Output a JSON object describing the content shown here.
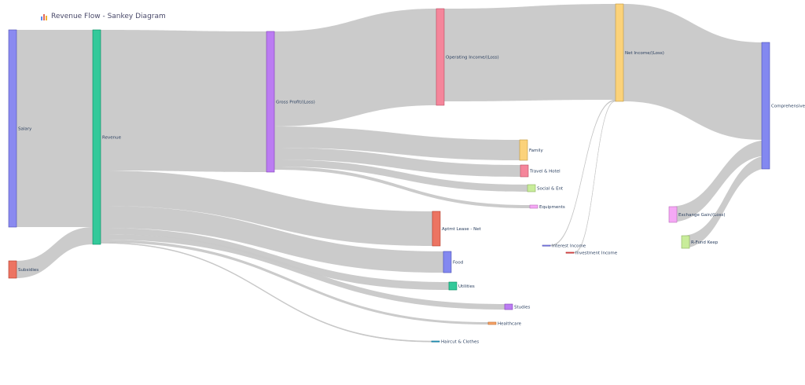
{
  "title": "Revenue Flow - Sankey Diagram",
  "title_icon": "bar-chart-icon",
  "nodes": [
    {
      "id": "salary",
      "label": "Salary",
      "color": "#8a8af0"
    },
    {
      "id": "subsidies",
      "label": "Subsidies",
      "color": "#ec7462"
    },
    {
      "id": "revenue",
      "label": "Revenue",
      "color": "#33c99a"
    },
    {
      "id": "gross",
      "label": "Gross Profit/(Loss)",
      "color": "#bb7cf2"
    },
    {
      "id": "operating",
      "label": "Operating Income/(Loss)",
      "color": "#f5869b"
    },
    {
      "id": "net",
      "label": "Net Income/(Loss)",
      "color": "#fbd27a"
    },
    {
      "id": "comprehensive",
      "label": "Comprehensive Income/(Loss)",
      "color": "#8388f0"
    },
    {
      "id": "family",
      "label": "Family",
      "color": "#fbd27a"
    },
    {
      "id": "travel",
      "label": "Travel & Hotel",
      "color": "#f5869b"
    },
    {
      "id": "social",
      "label": "Social & Ent",
      "color": "#c8ec9a"
    },
    {
      "id": "equipments",
      "label": "Equipments",
      "color": "#f5a8f5"
    },
    {
      "id": "aptmt",
      "label": "Aptmt Lease - Net",
      "color": "#ec7462"
    },
    {
      "id": "food",
      "label": "Food",
      "color": "#8388f0"
    },
    {
      "id": "utilities",
      "label": "Utilities",
      "color": "#33c99a"
    },
    {
      "id": "studies",
      "label": "Studies",
      "color": "#bb7cf2"
    },
    {
      "id": "healthcare",
      "label": "Healthcare",
      "color": "#f7a56a"
    },
    {
      "id": "haircut",
      "label": "Haircut & Clothes",
      "color": "#3aa6c8"
    },
    {
      "id": "interest",
      "label": "Interest Income",
      "color": "#8a8af0"
    },
    {
      "id": "investment",
      "label": "Investment Income",
      "color": "#ec5a5a"
    },
    {
      "id": "exchange",
      "label": "Exchange Gain/(Loss)",
      "color": "#f5a8f5"
    },
    {
      "id": "rfund",
      "label": "R-Fund Keep",
      "color": "#c8ec9a"
    }
  ],
  "links": [
    {
      "source": "salary",
      "target": "revenue"
    },
    {
      "source": "subsidies",
      "target": "revenue"
    },
    {
      "source": "revenue",
      "target": "gross"
    },
    {
      "source": "revenue",
      "target": "aptmt"
    },
    {
      "source": "revenue",
      "target": "food"
    },
    {
      "source": "revenue",
      "target": "utilities"
    },
    {
      "source": "revenue",
      "target": "studies"
    },
    {
      "source": "revenue",
      "target": "healthcare"
    },
    {
      "source": "revenue",
      "target": "haircut"
    },
    {
      "source": "gross",
      "target": "operating"
    },
    {
      "source": "gross",
      "target": "family"
    },
    {
      "source": "gross",
      "target": "travel"
    },
    {
      "source": "gross",
      "target": "social"
    },
    {
      "source": "gross",
      "target": "equipments"
    },
    {
      "source": "operating",
      "target": "net"
    },
    {
      "source": "interest",
      "target": "net"
    },
    {
      "source": "investment",
      "target": "net"
    },
    {
      "source": "net",
      "target": "comprehensive"
    },
    {
      "source": "comprehensive",
      "target": "exchange"
    },
    {
      "source": "comprehensive",
      "target": "rfund"
    }
  ]
}
